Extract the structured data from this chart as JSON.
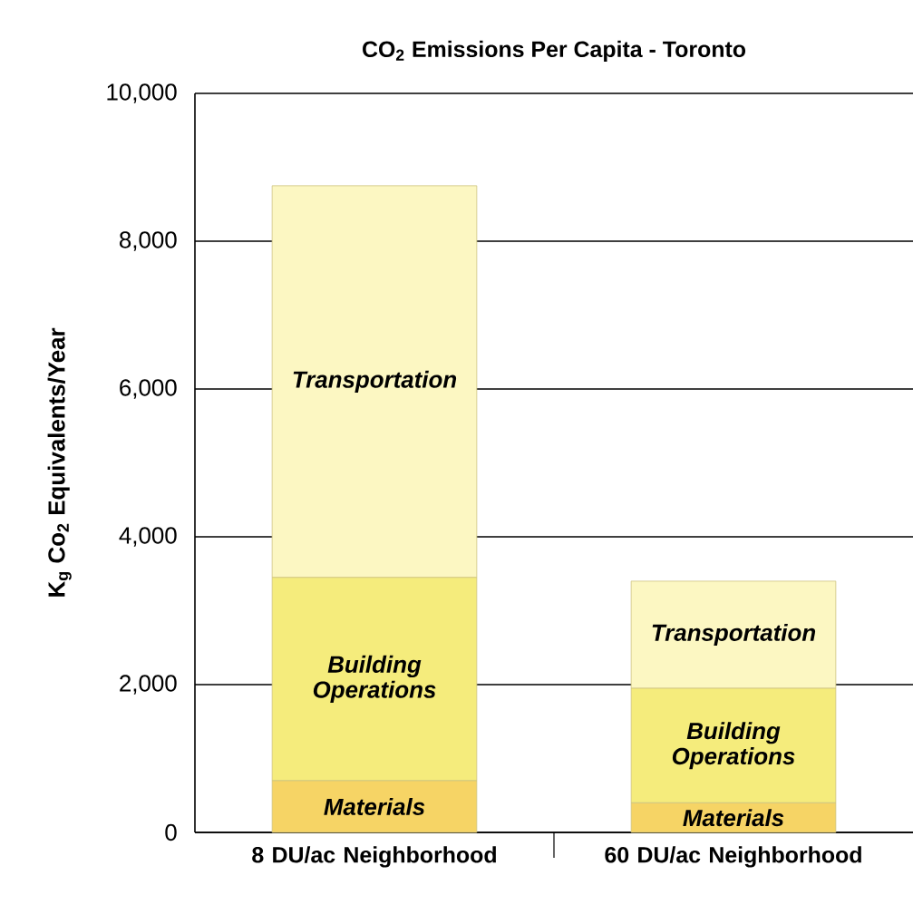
{
  "chart_data": {
    "type": "bar",
    "title": "CO$_{2}$ Emissions Per Capita - Toronto",
    "ylabel": "K$_{g}$ Co$_{2}$ Equivalents/Year",
    "categories": [
      "8 DU/ac Neighborhood",
      "60 DU/ac Neighborhood"
    ],
    "stacked": true,
    "series": [
      {
        "name": "Materials",
        "color": "#f6d465",
        "values": [
          700,
          400
        ]
      },
      {
        "name": "Building Operations",
        "color": "#f5ec7c",
        "values": [
          2750,
          1550
        ]
      },
      {
        "name": "Transportation",
        "color": "#fcf7c2",
        "values": [
          5300,
          1450
        ]
      }
    ],
    "ylim": [
      0,
      10000
    ],
    "yticks": [
      {
        "value": 0,
        "label": "0"
      },
      {
        "value": 2000,
        "label": "2,000"
      },
      {
        "value": 4000,
        "label": "4,000"
      },
      {
        "value": 6000,
        "label": "6,000"
      },
      {
        "value": 8000,
        "label": "8,000"
      },
      {
        "value": 10000,
        "label": "10,000"
      }
    ],
    "grid": "y",
    "legend": false
  }
}
